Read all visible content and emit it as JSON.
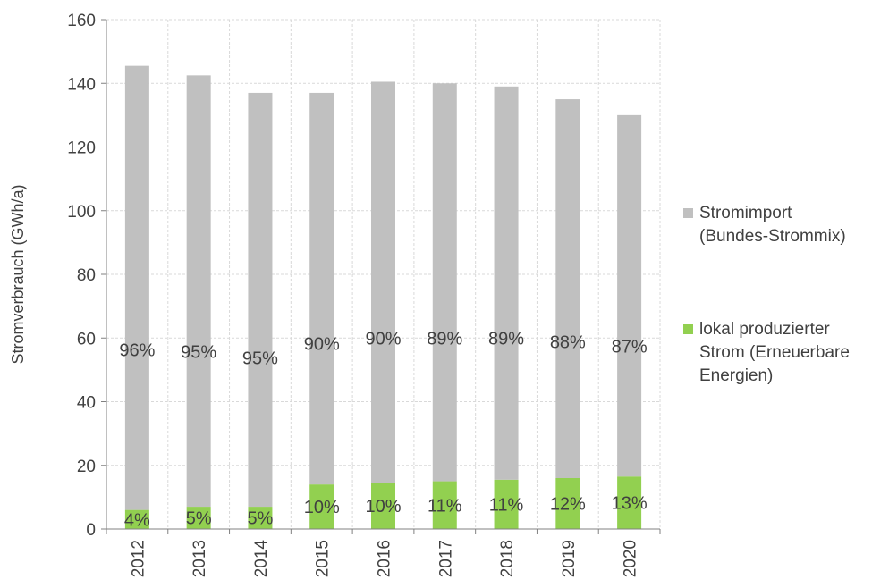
{
  "chart_data": {
    "type": "bar",
    "stacked": true,
    "ylabel": "Stromverbrauch (GWh/a)",
    "ylim": [
      0,
      160
    ],
    "yticks": [
      0,
      20,
      40,
      60,
      80,
      100,
      120,
      140,
      160
    ],
    "grid": true,
    "legend_position": "right",
    "categories": [
      "2012",
      "2013",
      "2014",
      "2015",
      "2016",
      "2017",
      "2018",
      "2019",
      "2020"
    ],
    "series": [
      {
        "name": "lokal produzierter Strom (Erneuerbare Energien)",
        "legend_lines": [
          "lokal produzierter",
          "Strom (Erneuerbare",
          "Energien)"
        ],
        "color": "#92d050",
        "values": [
          6,
          7,
          7,
          14,
          14.5,
          15,
          15.5,
          16,
          16.5
        ],
        "labels": [
          "4%",
          "5%",
          "5%",
          "10%",
          "10%",
          "11%",
          "11%",
          "12%",
          "13%"
        ]
      },
      {
        "name": "Stromimport (Bundes-Strommix)",
        "legend_lines": [
          "Stromimport",
          "(Bundes-Strommix)"
        ],
        "color": "#c0c0c0",
        "values": [
          139.5,
          135.5,
          130,
          123,
          126,
          125,
          123.5,
          119,
          113.5
        ],
        "labels": [
          "96%",
          "95%",
          "95%",
          "90%",
          "90%",
          "89%",
          "89%",
          "88%",
          "87%"
        ]
      }
    ]
  }
}
